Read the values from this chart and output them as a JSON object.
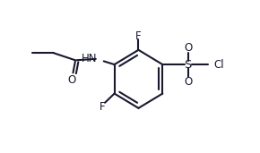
{
  "bg_color": "#ffffff",
  "line_color": "#1a1a2e",
  "lw": 1.5,
  "fs": 8.5,
  "rcx": 5.5,
  "rcy": 3.1,
  "r": 1.15,
  "xlim": [
    -0.2,
    10.5
  ],
  "ylim": [
    0.2,
    6.2
  ]
}
